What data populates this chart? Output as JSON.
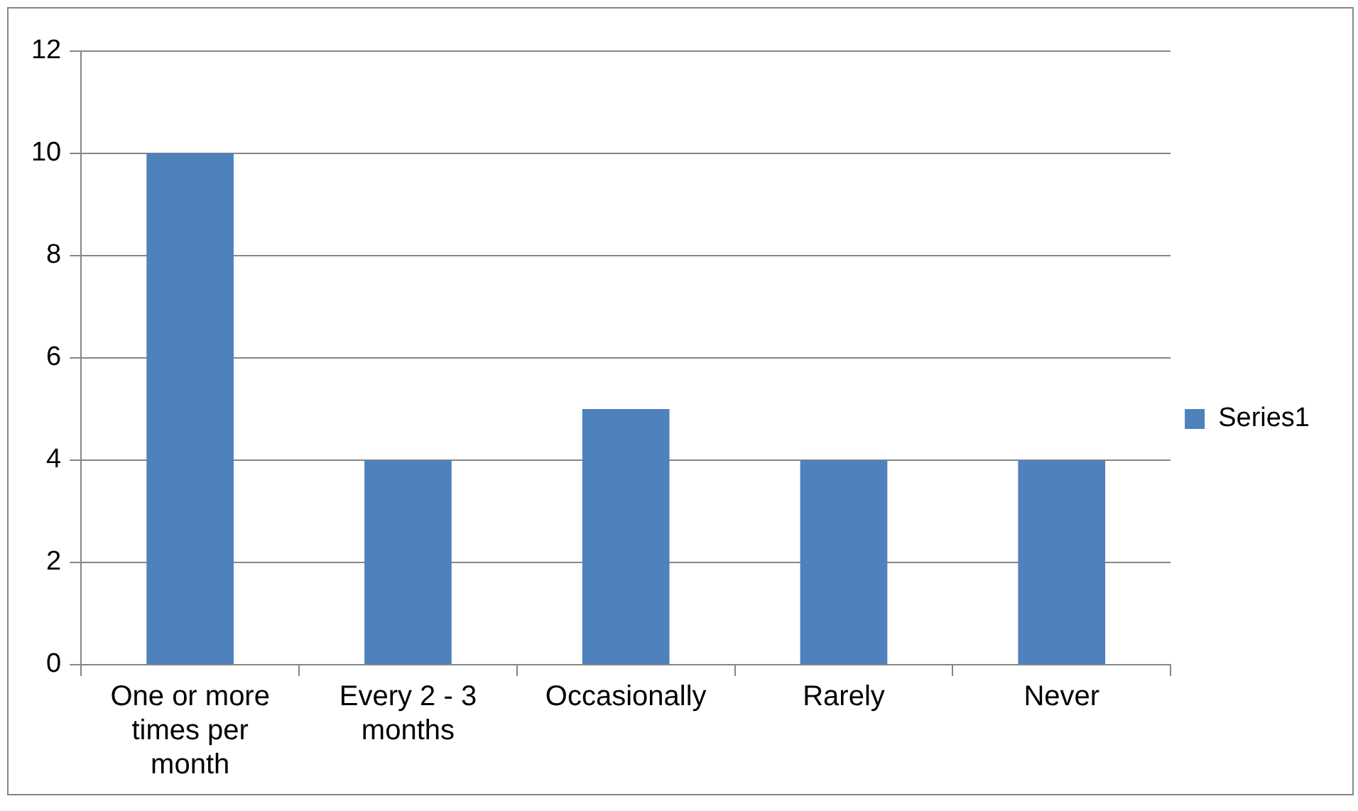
{
  "chart_data": {
    "type": "bar",
    "categories": [
      "One or more times per month",
      "Every 2 - 3 months",
      "Occasionally",
      "Rarely",
      "Never"
    ],
    "series": [
      {
        "name": "Series1",
        "color": "#4f81bd",
        "values": [
          10,
          4,
          5,
          4,
          4
        ]
      }
    ],
    "ylim": [
      0,
      12
    ],
    "yticks": [
      0,
      2,
      4,
      6,
      8,
      10,
      12
    ],
    "grid": "y",
    "legend": "right"
  }
}
